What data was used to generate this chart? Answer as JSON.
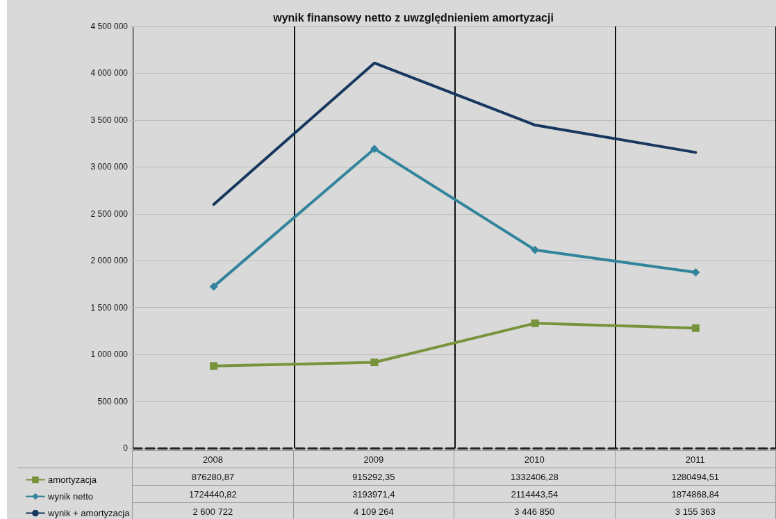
{
  "chart_data": {
    "type": "line",
    "title": "wynik finansowy netto z uwzględnieniem amortyzacji",
    "categories": [
      "2008",
      "2009",
      "2010",
      "2011"
    ],
    "series": [
      {
        "name": "amortyzacja",
        "color": "#77933c",
        "marker": "square",
        "values": [
          876280.87,
          915292.35,
          1332406.28,
          1280494.51
        ],
        "value_labels": [
          "876280,87",
          "915292,35",
          "1332406,28",
          "1280494,51"
        ]
      },
      {
        "name": "wynik netto",
        "color": "#31849b",
        "marker": "diamond",
        "values": [
          1724440.82,
          3193971.4,
          2114443.54,
          1874868.84
        ],
        "value_labels": [
          "1724440,82",
          "3193971,4",
          "2114443,54",
          "1874868,84"
        ]
      },
      {
        "name": "wynik + amortyzacja",
        "color": "#17375e",
        "marker": "none",
        "values": [
          2600722,
          4109264,
          3446850,
          3155363
        ],
        "value_labels": [
          "2 600 722",
          "4 109 264",
          "3 446 850",
          "3 155 363"
        ]
      }
    ],
    "ylim": [
      0,
      4500000
    ],
    "yticks": [
      0,
      500000,
      1000000,
      1500000,
      2000000,
      2500000,
      3000000,
      3500000,
      4000000,
      4500000
    ],
    "grid": true,
    "legend": "bottom left"
  }
}
